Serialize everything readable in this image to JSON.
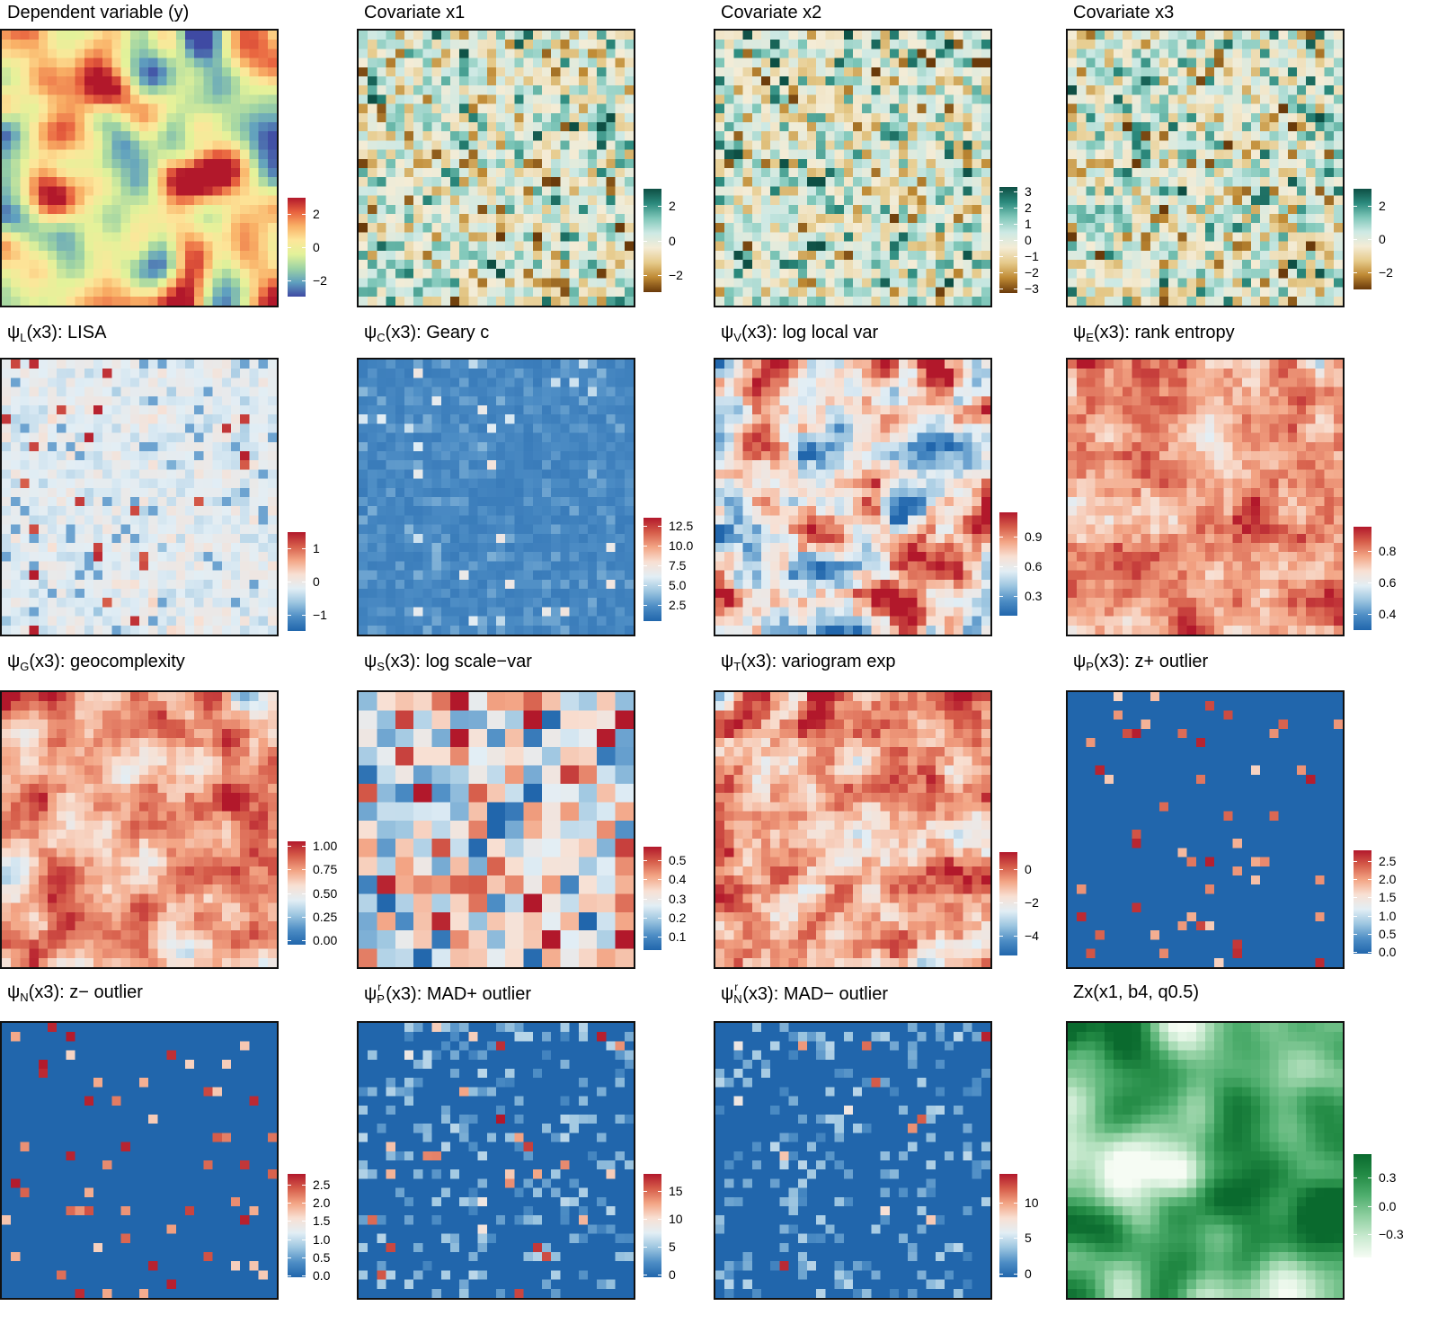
{
  "chart_data": [
    {
      "type": "heatmap",
      "title": "Dependent variable (y)",
      "palette": "spectral",
      "legend_ticks": [
        "2",
        "0",
        "−2"
      ],
      "colorbar_range": [
        -3,
        3
      ]
    },
    {
      "type": "heatmap",
      "title": "Covariate x1",
      "palette": "brbg",
      "legend_ticks": [
        "2",
        "0",
        "−2"
      ],
      "colorbar_range": [
        -3,
        3
      ]
    },
    {
      "type": "heatmap",
      "title": "Covariate x2",
      "palette": "brbg",
      "legend_ticks": [
        "3",
        "2",
        "1",
        "0",
        "−1",
        "−2",
        "−3"
      ],
      "colorbar_range": [
        -3.3,
        3.3
      ]
    },
    {
      "type": "heatmap",
      "title": "Covariate x3",
      "palette": "brbg",
      "legend_ticks": [
        "2",
        "0",
        "−2"
      ],
      "colorbar_range": [
        -3,
        3
      ]
    },
    {
      "type": "heatmap",
      "title_parts": {
        "psi": "ψ",
        "sub": "L",
        "rest": "(x3): LISA"
      },
      "palette": "rdbu",
      "legend_ticks": [
        "1",
        "0",
        "−1"
      ],
      "colorbar_range": [
        -1.5,
        1.5
      ]
    },
    {
      "type": "heatmap",
      "title_parts": {
        "psi": "ψ",
        "sub": "C",
        "rest": "(x3): Geary c"
      },
      "palette": "rdbu",
      "legend_ticks": [
        "12.5",
        "10.0",
        "7.5",
        "5.0",
        "2.5"
      ],
      "colorbar_range": [
        0.5,
        13.5
      ]
    },
    {
      "type": "heatmap",
      "title_parts": {
        "psi": "ψ",
        "sub": "V",
        "rest": "(x3): log local var"
      },
      "palette": "rdbu",
      "legend_ticks": [
        "0.9",
        "0.6",
        "0.3"
      ],
      "colorbar_range": [
        0.1,
        1.15
      ]
    },
    {
      "type": "heatmap",
      "title_parts": {
        "psi": "ψ",
        "sub": "E",
        "rest": "(x3): rank entropy"
      },
      "palette": "rdbu",
      "legend_ticks": [
        "0.8",
        "0.6",
        "0.4"
      ],
      "colorbar_range": [
        0.3,
        0.95
      ]
    },
    {
      "type": "heatmap",
      "title_parts": {
        "psi": "ψ",
        "sub": "G",
        "rest": "(x3): geocomplexity"
      },
      "palette": "rdbu",
      "legend_ticks": [
        "1.00",
        "0.75",
        "0.50",
        "0.25",
        "0.00"
      ],
      "colorbar_range": [
        -0.05,
        1.05
      ]
    },
    {
      "type": "heatmap",
      "title_parts": {
        "psi": "ψ",
        "sub": "S",
        "rest": "(x3): log scale−var"
      },
      "palette": "rdbu",
      "legend_ticks": [
        "0.5",
        "0.4",
        "0.3",
        "0.2",
        "0.1"
      ],
      "colorbar_range": [
        0.03,
        0.57
      ]
    },
    {
      "type": "heatmap",
      "title_parts": {
        "psi": "ψ",
        "sub": "T",
        "rest": "(x3): variogram exp"
      },
      "palette": "rdbu",
      "legend_ticks": [
        "0",
        "−2",
        "−4"
      ],
      "colorbar_range": [
        -5.2,
        1
      ]
    },
    {
      "type": "heatmap",
      "title_parts": {
        "psi": "ψ",
        "sub": "P",
        "rest": "(x3): z+ outlier"
      },
      "palette": "rdbu",
      "legend_ticks": [
        "2.5",
        "2.0",
        "1.5",
        "1.0",
        "0.5",
        "0.0"
      ],
      "colorbar_range": [
        -0.05,
        2.8
      ]
    },
    {
      "type": "heatmap",
      "title_parts": {
        "psi": "ψ",
        "sub": "N",
        "rest": "(x3): z− outlier"
      },
      "palette": "rdbu",
      "legend_ticks": [
        "2.5",
        "2.0",
        "1.5",
        "1.0",
        "0.5",
        "0.0"
      ],
      "colorbar_range": [
        -0.05,
        2.8
      ]
    },
    {
      "type": "heatmap",
      "title_parts": {
        "psi": "ψ",
        "sup": "r",
        "sub": "P",
        "rest": "(x3): MAD+ outlier"
      },
      "palette": "rdbu",
      "legend_ticks": [
        "15",
        "10",
        "5",
        "0"
      ],
      "colorbar_range": [
        -0.5,
        18
      ]
    },
    {
      "type": "heatmap",
      "title_parts": {
        "psi": "ψ",
        "sup": "r",
        "sub": "N",
        "rest": "(x3): MAD− outlier"
      },
      "palette": "rdbu",
      "legend_ticks": [
        "10",
        "5",
        "0"
      ],
      "colorbar_range": [
        -0.5,
        14
      ]
    },
    {
      "type": "heatmap",
      "title": "Zx(x1, b4, q0.5)",
      "palette": "greens",
      "legend_ticks": [
        "0.3",
        "0.0",
        "−0.3"
      ],
      "colorbar_range": [
        -0.55,
        0.55
      ]
    }
  ],
  "palettes": {
    "spectral": [
      "#3f4aa3",
      "#5f9fbf",
      "#9dd3a4",
      "#e3f29a",
      "#fde69a",
      "#f9b066",
      "#e8613e",
      "#b2182b"
    ],
    "brbg": [
      "#6a3a0a",
      "#bf8a34",
      "#e6cb8c",
      "#f4ecd6",
      "#cde9e4",
      "#7fc7b9",
      "#2b8a7d",
      "#0e4f44"
    ],
    "rdbu": [
      "#2166ac",
      "#4d8dc5",
      "#9cc5e0",
      "#e2eef5",
      "#f8e0d3",
      "#f3a585",
      "#d65d4a",
      "#b2182b"
    ],
    "greens": [
      "#f6fcf4",
      "#c9ead0",
      "#8fcfa0",
      "#4fae6e",
      "#238b45",
      "#0a6a2e"
    ]
  }
}
